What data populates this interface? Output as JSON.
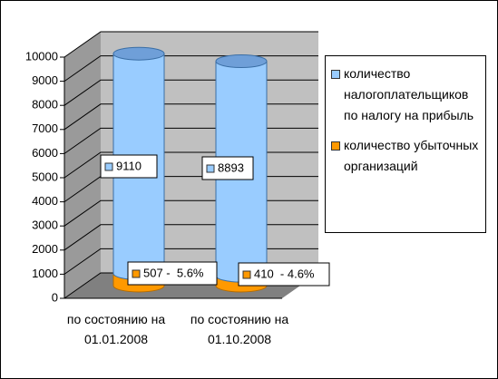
{
  "chart_data": {
    "type": "bar3d_stacked_cylinder",
    "categories": [
      "по состоянию на 01.01.2008",
      "по состоянию на 01.10.2008"
    ],
    "series": [
      {
        "name": "количество убыточных организаций",
        "color": "#ff9900",
        "values": [
          507,
          410
        ],
        "value_labels": [
          "507 -  5.6%",
          "410  - 4.6%"
        ]
      },
      {
        "name": "количество налогоплательщиков по налогу на прибыль",
        "color": "#99ccff",
        "values": [
          9110,
          8893
        ]
      }
    ],
    "ylim": [
      0,
      10000
    ],
    "yticks": [
      0,
      1000,
      2000,
      3000,
      4000,
      5000,
      6000,
      7000,
      8000,
      9000,
      10000
    ],
    "grid": true,
    "legend": "right"
  }
}
